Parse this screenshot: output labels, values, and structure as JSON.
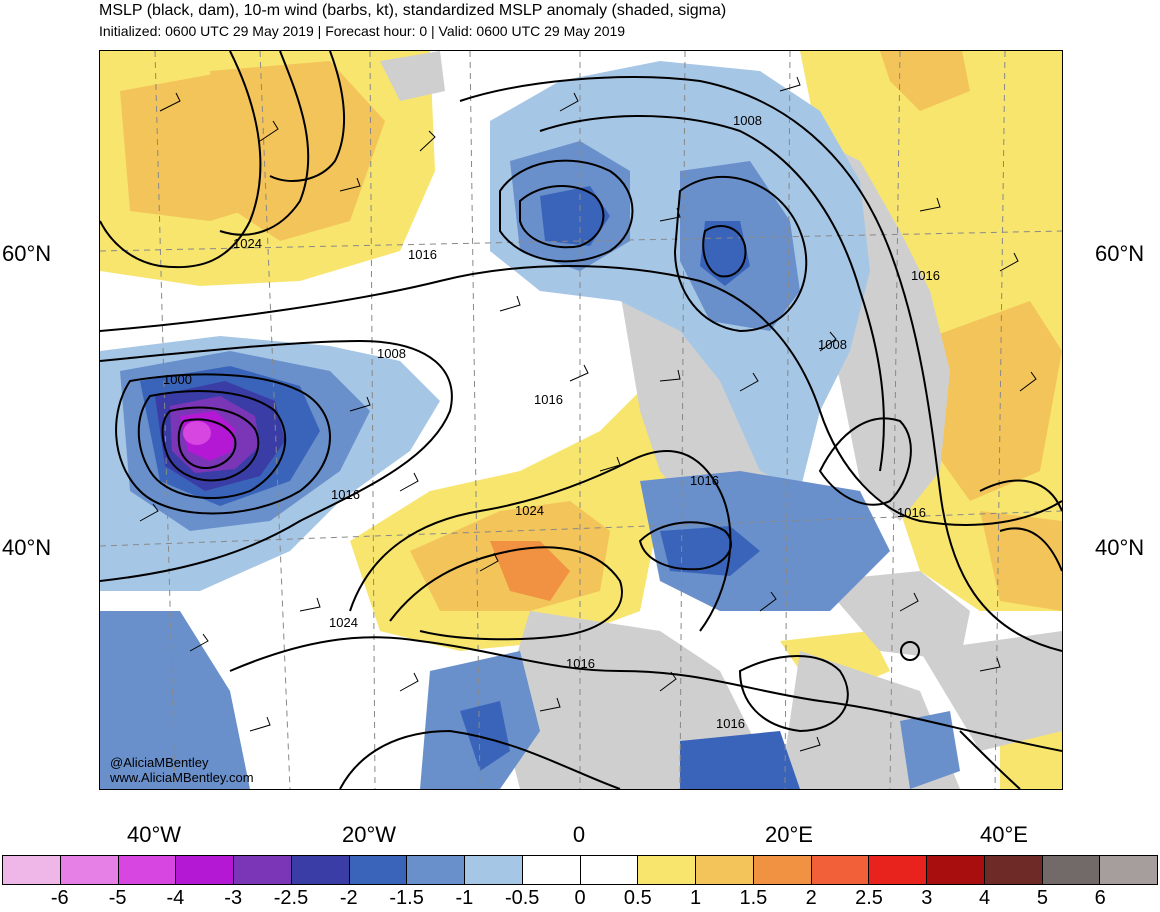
{
  "header": {
    "title": "MSLP (black, dam), 10-m wind (barbs, kt), standardized MSLP anomaly (shaded, sigma)",
    "subtitle": "Initialized: 0600 UTC 29 May 2019 | Forecast hour: 0 | Valid: 0600 UTC 29 May 2019"
  },
  "map": {
    "lat_labels": [
      "60°N",
      "40°N"
    ],
    "lon_labels": [
      "40°W",
      "20°W",
      "0",
      "20°E",
      "40°E"
    ],
    "contour_labels": [
      "1008",
      "1024",
      "1016",
      "1008",
      "1000",
      "1016",
      "1008",
      "1016",
      "1016",
      "1024",
      "1016",
      "1024",
      "1016",
      "1016",
      "1016"
    ],
    "credit": [
      "@AliciaMBentley",
      "www.AliciaMBentley.com"
    ]
  },
  "colorbar": {
    "labels": [
      "-6",
      "-5",
      "-4",
      "-3",
      "-2.5",
      "-2",
      "-1.5",
      "-1",
      "-0.5",
      "0",
      "0.5",
      "1",
      "1.5",
      "2",
      "2.5",
      "3",
      "4",
      "5",
      "6"
    ],
    "colors": [
      "#efb7e8",
      "#e67fe6",
      "#d746e0",
      "#b418d4",
      "#7b36b8",
      "#3b3da6",
      "#3a64b9",
      "#6a90cc",
      "#a6c6e6",
      "#ffffff",
      "#ffffff",
      "#f8e56e",
      "#f3c45a",
      "#f19142",
      "#f2603a",
      "#e8221c",
      "#a80e0e",
      "#6e2a26",
      "#716a68",
      "#a69e9c"
    ]
  }
}
